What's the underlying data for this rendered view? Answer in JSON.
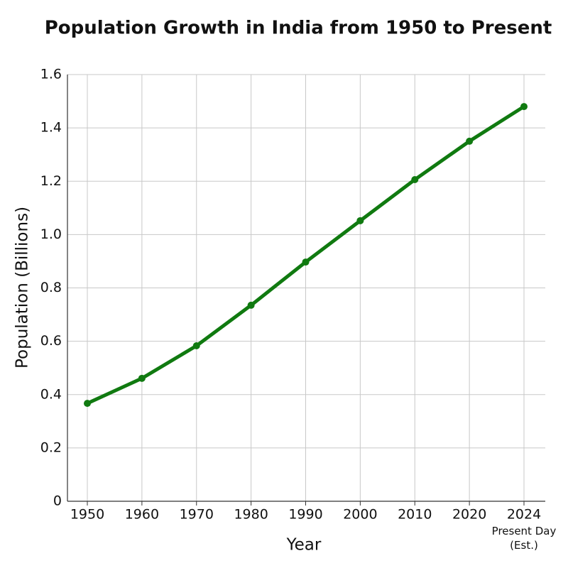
{
  "chart_data": {
    "type": "line",
    "title": "Population Growth in India from 1950 to Present",
    "x_label": "Year",
    "y_label": "Population (Billions)",
    "categories": [
      "1950",
      "1960",
      "1970",
      "1980",
      "1990",
      "2000",
      "2010",
      "2020",
      "2024"
    ],
    "annotation": "Present Day (Est.)",
    "series": [
      {
        "name": "Population",
        "color": "#107a10",
        "values": [
          0.367,
          0.461,
          0.583,
          0.735,
          0.897,
          1.052,
          1.206,
          1.35,
          1.48
        ]
      }
    ],
    "ylim": [
      0,
      1.6
    ],
    "yticks": [
      0,
      0.2,
      0.4,
      0.6,
      0.8,
      {
        "value": 1,
        "label": "1.0"
      },
      1.2,
      1.4,
      1.6
    ],
    "grid": true
  }
}
